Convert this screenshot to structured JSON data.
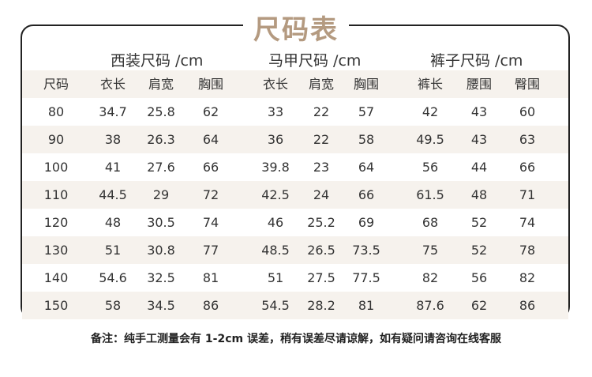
{
  "title": "尺码表",
  "groups": [
    "西装尺码 /cm",
    "马甲尺码 /cm",
    "裤子尺码 /cm"
  ],
  "table": {
    "headers": [
      "尺码",
      "衣长",
      "肩宽",
      "胸围",
      "衣长",
      "肩宽",
      "胸围",
      "裤长",
      "腰围",
      "臀围"
    ],
    "rows": [
      [
        "80",
        "34.7",
        "25.8",
        "62",
        "33",
        "22",
        "57",
        "42",
        "43",
        "60"
      ],
      [
        "90",
        "38",
        "26.3",
        "64",
        "36",
        "22",
        "58",
        "49.5",
        "43",
        "63"
      ],
      [
        "100",
        "41",
        "27.6",
        "66",
        "39.8",
        "23",
        "64",
        "56",
        "44",
        "66"
      ],
      [
        "110",
        "44.5",
        "29",
        "72",
        "42.5",
        "24",
        "66",
        "61.5",
        "48",
        "71"
      ],
      [
        "120",
        "48",
        "30.5",
        "74",
        "46",
        "25.2",
        "69",
        "68",
        "52",
        "74"
      ],
      [
        "130",
        "51",
        "30.8",
        "77",
        "48.5",
        "26.5",
        "73.5",
        "75",
        "52",
        "78"
      ],
      [
        "140",
        "54.6",
        "32.5",
        "81",
        "51",
        "27.5",
        "77.5",
        "82",
        "56",
        "82"
      ],
      [
        "150",
        "58",
        "34.5",
        "86",
        "54.5",
        "28.2",
        "81",
        "87.6",
        "62",
        "86"
      ]
    ]
  },
  "note": "备注：纯手工测量会有 1-2cm 误差，稍有误差尽请谅解，如有疑问请咨询在线客服",
  "colors": {
    "title": "#b49a80",
    "shaded_row": "#f6f2ed",
    "border": "#222222"
  }
}
